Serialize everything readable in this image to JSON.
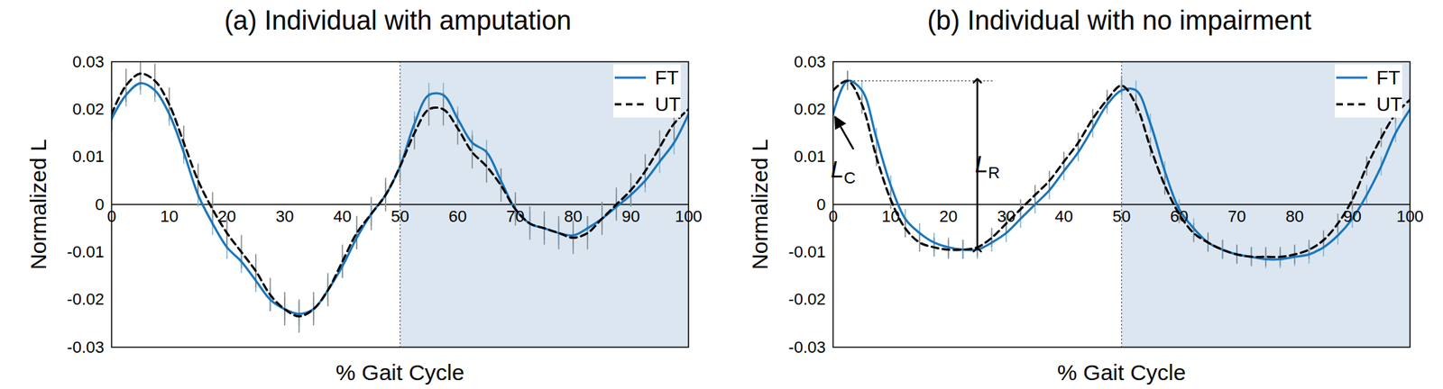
{
  "chart_data": [
    {
      "type": "line",
      "title": "(a) Individual with amputation",
      "xlabel": "% Gait Cycle",
      "ylabel": "Normalized L",
      "x": [
        0,
        2.5,
        5,
        7.5,
        10,
        12.5,
        15,
        17.5,
        20,
        22.5,
        25,
        27.5,
        30,
        32.5,
        35,
        37.5,
        40,
        42.5,
        45,
        47.5,
        50,
        52.5,
        55,
        57.5,
        60,
        62.5,
        65,
        67.5,
        70,
        72.5,
        75,
        77.5,
        80,
        82.5,
        85,
        87.5,
        90,
        92.5,
        95,
        97.5,
        100
      ],
      "xlim": [
        0,
        100
      ],
      "ylim": [
        -0.03,
        0.03
      ],
      "xticks": [
        0,
        10,
        20,
        30,
        40,
        50,
        60,
        70,
        80,
        90,
        100
      ],
      "yticks": [
        -0.03,
        -0.02,
        -0.01,
        0,
        0.01,
        0.02,
        0.03
      ],
      "legend": "top-right",
      "shaded_x": [
        50,
        100
      ],
      "series": [
        {
          "name": "FT",
          "color": "#1a75bc",
          "line_style": "solid",
          "values": [
            0.018,
            0.023,
            0.0255,
            0.024,
            0.019,
            0.011,
            0.002,
            -0.004,
            -0.009,
            -0.012,
            -0.016,
            -0.02,
            -0.022,
            -0.023,
            -0.022,
            -0.018,
            -0.013,
            -0.007,
            -0.002,
            0.002,
            0.008,
            0.017,
            0.023,
            0.023,
            0.018,
            0.013,
            0.011,
            0.005,
            -0.001,
            -0.004,
            -0.005,
            -0.006,
            -0.0065,
            -0.005,
            -0.003,
            -0.0005,
            0.002,
            0.005,
            0.009,
            0.013,
            0.019
          ],
          "error": [
            0.0025,
            0.0025,
            0.0025,
            0.0025,
            0.0025,
            0.0025,
            0.0025,
            0.0025,
            0.0025,
            0.0025,
            0.0025,
            0.0025,
            0.0025,
            0.0025,
            0.0025,
            0.0025,
            0.0025,
            0.0025,
            0.0025,
            0.0025,
            0.0025,
            0.0025,
            0.0025,
            0.0025,
            0.0025,
            0.0025,
            0.0025,
            0.0025,
            0.0025,
            0.0025,
            0.0025,
            0.0025,
            0.0025,
            0.0025,
            0.0025,
            0.0025,
            0.0025,
            0.0025,
            0.0025,
            0.0025,
            0.0025
          ]
        },
        {
          "name": "UT",
          "color": "#000000",
          "line_style": "dashed",
          "values": [
            0.019,
            0.025,
            0.0275,
            0.026,
            0.021,
            0.013,
            0.005,
            -0.001,
            -0.006,
            -0.01,
            -0.014,
            -0.019,
            -0.022,
            -0.0235,
            -0.022,
            -0.018,
            -0.012,
            -0.006,
            -0.002,
            0.002,
            0.008,
            0.015,
            0.02,
            0.02,
            0.016,
            0.011,
            0.008,
            0.004,
            -0.001,
            -0.004,
            -0.005,
            -0.006,
            -0.007,
            -0.006,
            -0.003,
            0,
            0.003,
            0.007,
            0.012,
            0.017,
            0.02
          ],
          "error": [
            0.0035,
            0.0035,
            0.0035,
            0.0035,
            0.0035,
            0.0035,
            0.0035,
            0.0035,
            0.0035,
            0.0035,
            0.0035,
            0.0035,
            0.0035,
            0.0035,
            0.0035,
            0.0035,
            0.0035,
            0.0035,
            0.0035,
            0.0035,
            0.0035,
            0.0035,
            0.0035,
            0.0035,
            0.0035,
            0.0035,
            0.0035,
            0.0035,
            0.0035,
            0.0035,
            0.0035,
            0.0035,
            0.0035,
            0.0035,
            0.0035,
            0.0035,
            0.0035,
            0.0035,
            0.0035,
            0.0035,
            0.0035
          ]
        }
      ]
    },
    {
      "type": "line",
      "title": "(b) Individual with no impairment",
      "xlabel": "% Gait Cycle",
      "ylabel": "Normalized L",
      "x": [
        0,
        2.5,
        5,
        7.5,
        10,
        12.5,
        15,
        17.5,
        20,
        22.5,
        25,
        27.5,
        30,
        32.5,
        35,
        37.5,
        40,
        42.5,
        45,
        47.5,
        50,
        52.5,
        55,
        57.5,
        60,
        62.5,
        65,
        67.5,
        70,
        72.5,
        75,
        77.5,
        80,
        82.5,
        85,
        87.5,
        90,
        92.5,
        95,
        97.5,
        100
      ],
      "xlim": [
        0,
        100
      ],
      "ylim": [
        -0.03,
        0.03
      ],
      "xticks": [
        0,
        10,
        20,
        30,
        40,
        50,
        60,
        70,
        80,
        90,
        100
      ],
      "yticks": [
        -0.03,
        -0.02,
        -0.01,
        0,
        0.01,
        0.02,
        0.03
      ],
      "legend": "top-right",
      "shaded_x": [
        50,
        100
      ],
      "annotations": [
        {
          "label": "L",
          "subscript": "C",
          "x": 0,
          "y": 0.019
        },
        {
          "label": "L",
          "subscript": "R",
          "x": 25,
          "y1": -0.0095,
          "y2": 0.026,
          "x1": 3,
          "x2": 28
        }
      ],
      "series": [
        {
          "name": "FT",
          "color": "#1a75bc",
          "line_style": "solid",
          "values": [
            0.019,
            0.026,
            0.024,
            0.014,
            0.004,
            -0.003,
            -0.006,
            -0.008,
            -0.009,
            -0.0095,
            -0.0095,
            -0.008,
            -0.006,
            -0.003,
            0,
            0.003,
            0.007,
            0.011,
            0.016,
            0.021,
            0.024,
            0.024,
            0.017,
            0.007,
            -0.001,
            -0.005,
            -0.008,
            -0.0095,
            -0.0105,
            -0.011,
            -0.0115,
            -0.0115,
            -0.011,
            -0.0105,
            -0.009,
            -0.0065,
            -0.003,
            0.002,
            0.008,
            0.015,
            0.02
          ],
          "error": [
            0.002,
            0.002,
            0.002,
            0.002,
            0.002,
            0.002,
            0.002,
            0.002,
            0.002,
            0.002,
            0.002,
            0.002,
            0.002,
            0.002,
            0.002,
            0.002,
            0.002,
            0.002,
            0.002,
            0.002,
            0.002,
            0.002,
            0.002,
            0.002,
            0.002,
            0.002,
            0.002,
            0.002,
            0.002,
            0.002,
            0.002,
            0.002,
            0.002,
            0.002,
            0.002,
            0.002,
            0.002,
            0.002,
            0.002,
            0.002,
            0.002
          ]
        },
        {
          "name": "UT",
          "color": "#000000",
          "line_style": "dashed",
          "values": [
            0.024,
            0.026,
            0.021,
            0.01,
            0.001,
            -0.005,
            -0.008,
            -0.009,
            -0.0095,
            -0.0095,
            -0.009,
            -0.007,
            -0.004,
            -0.001,
            0.002,
            0.005,
            0.009,
            0.013,
            0.018,
            0.022,
            0.025,
            0.021,
            0.012,
            0.004,
            -0.002,
            -0.006,
            -0.008,
            -0.0095,
            -0.0105,
            -0.011,
            -0.011,
            -0.011,
            -0.0105,
            -0.0095,
            -0.0075,
            -0.004,
            0.001,
            0.008,
            0.014,
            0.019,
            0.022
          ],
          "error": [
            0.002,
            0.002,
            0.002,
            0.002,
            0.002,
            0.002,
            0.002,
            0.002,
            0.002,
            0.002,
            0.002,
            0.002,
            0.002,
            0.002,
            0.002,
            0.002,
            0.002,
            0.002,
            0.002,
            0.002,
            0.002,
            0.002,
            0.002,
            0.002,
            0.002,
            0.002,
            0.002,
            0.002,
            0.002,
            0.002,
            0.002,
            0.002,
            0.002,
            0.002,
            0.002,
            0.002,
            0.002,
            0.002,
            0.002,
            0.002,
            0.002
          ]
        }
      ]
    }
  ]
}
